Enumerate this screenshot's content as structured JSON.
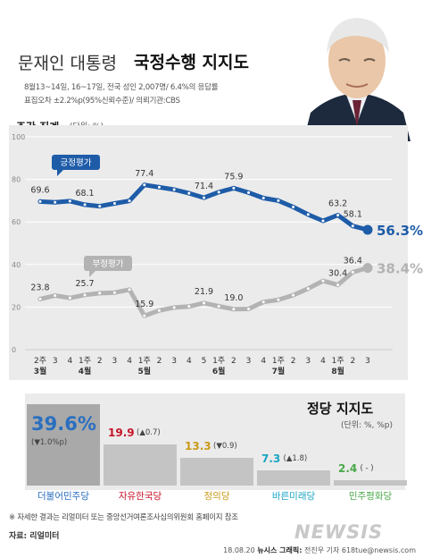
{
  "header": {
    "title_plain": "문재인 대통령",
    "title_bold": "국정수행 지지도",
    "survey_line1": "8월13~14일, 16~17일, 전국 성인 2,007명/ 6.4%의 응답률",
    "survey_line2": "표집오차 ±2.2%p(95%신뢰수준)/ 의뢰기관:CBS"
  },
  "weekly": {
    "heading": "주간 집계",
    "unit": "(단위: %)"
  },
  "party": {
    "heading": "정당 지지도",
    "unit": "(단위: %, %p)"
  },
  "footer": {
    "note": "※ 자세한 결과는 리얼미터 또는 중앙선거여론조사심의위원회 홈페이지 참조",
    "source": "자료: 리얼미터",
    "credit_date": "18.08.20",
    "credit_agency": "뉴시스 그래픽:",
    "credit_author": "전진우 기자 618tue@newsis.com",
    "watermark": "NEWSIS"
  },
  "colors": {
    "positive": "#1e5ca8",
    "negative": "#b3b3b3",
    "panel": "#ebebeb",
    "dp": "#2a6fc0",
    "lkp": "#c7142a",
    "bp": "#c99a18",
    "bmp": "#1aa5c4",
    "pdp": "#4aa84a"
  },
  "chart_data": [
    {
      "type": "line",
      "title": "주간 집계",
      "ylabel": "(단위: %)",
      "ylim": [
        0,
        100
      ],
      "yticks": [
        0,
        20,
        40,
        60,
        80,
        100
      ],
      "grid": true,
      "x": [
        "3월 2주",
        "3",
        "4",
        "4월 1주",
        "2",
        "3",
        "4",
        "5월 1주",
        "2",
        "3",
        "4",
        "5",
        "6월 1주",
        "2",
        "3",
        "4",
        "7월 1주",
        "2",
        "3",
        "4",
        "8월 1주",
        "2",
        "3"
      ],
      "xtick_labels": [
        "2주",
        "3",
        "4",
        "1주",
        "2",
        "3",
        "4",
        "1주",
        "2",
        "3",
        "4",
        "5",
        "1주",
        "2",
        "3",
        "4",
        "1주",
        "2",
        "3",
        "4",
        "1주",
        "2",
        "3"
      ],
      "month_labels": [
        {
          "index": 0,
          "label": "3월"
        },
        {
          "index": 3,
          "label": "4월"
        },
        {
          "index": 7,
          "label": "5월"
        },
        {
          "index": 12,
          "label": "6월"
        },
        {
          "index": 16,
          "label": "7월"
        },
        {
          "index": 20,
          "label": "8월"
        }
      ],
      "series": [
        {
          "name": "긍정평가",
          "values": [
            69.6,
            69.2,
            69.8,
            68.1,
            67.4,
            68.7,
            69.9,
            77.4,
            76.3,
            75.2,
            73.5,
            71.4,
            74.0,
            75.9,
            73.8,
            71.2,
            70.0,
            67.0,
            63.5,
            60.5,
            63.2,
            58.1,
            56.3
          ],
          "labels": [
            {
              "index": 0,
              "text": "69.6"
            },
            {
              "index": 3,
              "text": "68.1"
            },
            {
              "index": 7,
              "text": "77.4"
            },
            {
              "index": 11,
              "text": "71.4"
            },
            {
              "index": 13,
              "text": "75.9"
            },
            {
              "index": 20,
              "text": "63.2"
            },
            {
              "index": 21,
              "text": "58.1"
            },
            {
              "index": 22,
              "text": "56.3%"
            }
          ]
        },
        {
          "name": "부정평가",
          "values": [
            23.8,
            25.4,
            24.3,
            25.7,
            26.5,
            26.8,
            28.2,
            15.9,
            18.4,
            19.8,
            20.3,
            21.9,
            20.4,
            19.0,
            19.1,
            22.4,
            23.4,
            25.6,
            28.7,
            32.3,
            30.4,
            36.4,
            38.4
          ],
          "labels": [
            {
              "index": 0,
              "text": "23.8"
            },
            {
              "index": 3,
              "text": "25.7"
            },
            {
              "index": 7,
              "text": "15.9"
            },
            {
              "index": 11,
              "text": "21.9"
            },
            {
              "index": 13,
              "text": "19.0"
            },
            {
              "index": 20,
              "text": "30.4"
            },
            {
              "index": 21,
              "text": "36.4"
            },
            {
              "index": 22,
              "text": "38.4%"
            }
          ]
        }
      ]
    },
    {
      "type": "bar",
      "title": "정당 지지도",
      "ylabel": "(단위: %, %p)",
      "categories": [
        "더불어민주당",
        "자유한국당",
        "정의당",
        "바른미래당",
        "민주평화당"
      ],
      "values": [
        39.6,
        19.9,
        13.3,
        7.3,
        2.4
      ],
      "value_labels": [
        "39.6%",
        "19.9",
        "13.3",
        "7.3",
        "2.4"
      ],
      "changes": [
        "(▼1.0%p)",
        "(▲0.7)",
        "(▼0.9)",
        "(▲1.8)",
        "( - )"
      ]
    }
  ]
}
